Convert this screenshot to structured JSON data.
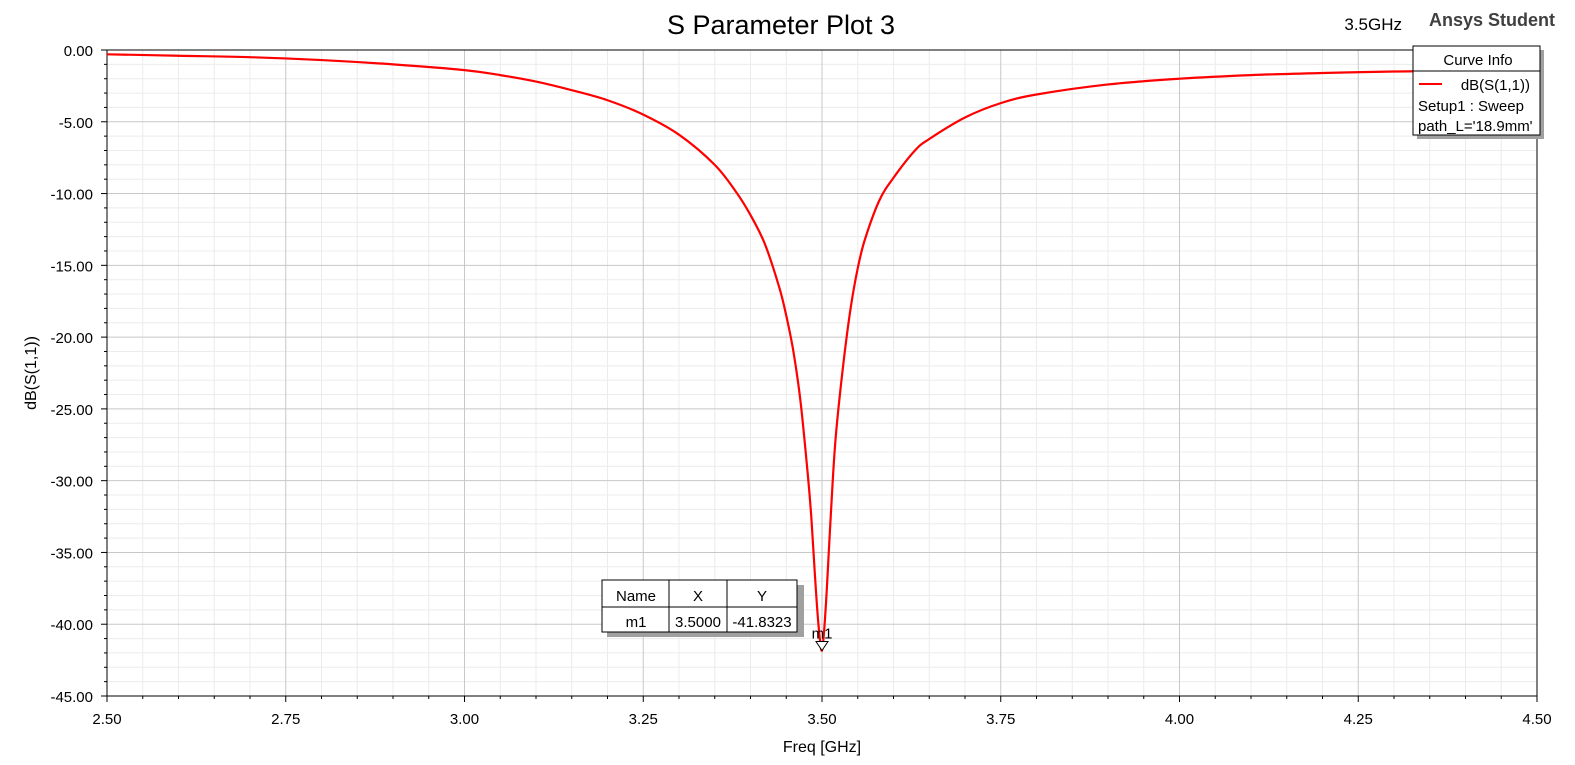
{
  "chart_data": {
    "type": "line",
    "title": "S Parameter Plot 3",
    "xlabel": "Freq [GHz]",
    "ylabel": "dB(S(1,1))",
    "xlim": [
      2.5,
      4.5
    ],
    "ylim": [
      -45,
      0
    ],
    "grid": true,
    "x_ticks": [
      "2.50",
      "2.75",
      "3.00",
      "3.25",
      "3.50",
      "3.75",
      "4.00",
      "4.25",
      "4.50"
    ],
    "y_ticks": [
      "0.00",
      "-5.00",
      "-10.00",
      "-15.00",
      "-20.00",
      "-25.00",
      "-30.00",
      "-35.00",
      "-40.00",
      "-45.00"
    ],
    "series": [
      {
        "name": "dB(S(1,1))",
        "color": "#ff0000",
        "x": [
          2.5,
          2.6,
          2.7,
          2.8,
          2.9,
          3.0,
          3.05,
          3.1,
          3.15,
          3.2,
          3.25,
          3.3,
          3.35,
          3.38,
          3.4,
          3.42,
          3.44,
          3.45,
          3.46,
          3.47,
          3.48,
          3.485,
          3.49,
          3.495,
          3.5,
          3.505,
          3.51,
          3.515,
          3.52,
          3.53,
          3.54,
          3.55,
          3.56,
          3.58,
          3.6,
          3.63,
          3.65,
          3.7,
          3.75,
          3.8,
          3.9,
          4.0,
          4.1,
          4.2,
          4.3,
          4.4,
          4.5
        ],
        "y": [
          -0.3,
          -0.4,
          -0.5,
          -0.7,
          -1.0,
          -1.4,
          -1.75,
          -2.2,
          -2.8,
          -3.5,
          -4.5,
          -5.9,
          -8.0,
          -9.9,
          -11.5,
          -13.5,
          -16.5,
          -18.5,
          -21.0,
          -24.5,
          -29.5,
          -32.5,
          -36.5,
          -40.0,
          -41.83,
          -39.0,
          -34.5,
          -30.0,
          -26.5,
          -21.8,
          -18.0,
          -15.2,
          -13.2,
          -10.5,
          -8.9,
          -7.0,
          -6.2,
          -4.7,
          -3.7,
          -3.1,
          -2.4,
          -2.0,
          -1.75,
          -1.6,
          -1.5,
          -1.45,
          -1.4
        ]
      }
    ],
    "marker": {
      "name": "m1",
      "x": 3.5,
      "y": -41.8323
    }
  },
  "header": {
    "frequency_note": "3.5GHz",
    "brand": "Ansys Student"
  },
  "legend": {
    "title": "Curve Info",
    "entry": "dB(S(1,1))",
    "line2": "Setup1 : Sweep",
    "line3": "path_L='18.9mm'"
  },
  "marker_table": {
    "headers": [
      "Name",
      "X",
      "Y"
    ],
    "row": [
      "m1",
      "3.5000",
      "-41.8323"
    ]
  }
}
